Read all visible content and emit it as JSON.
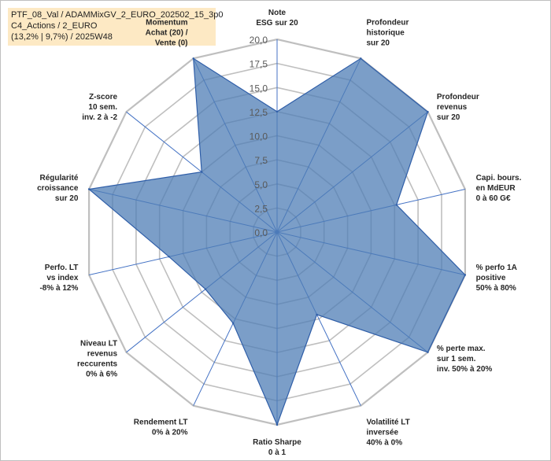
{
  "header": {
    "line1": "PTF_08_Val / ADAMMixGV_2_EURO_202502_15_3p0",
    "line2": "C4_Actions / 2_EURO",
    "line3": "(13,2% | 9,7%) / 2025W48"
  },
  "colors": {
    "fill": "#4f7db5",
    "stroke": "#2f5ea8",
    "grid": "#bfbfbf",
    "spoke": "#4472c4",
    "info_bg": "#fde9c4"
  },
  "chart_data": {
    "type": "radar",
    "rmin": 0,
    "rmax": 20,
    "ticks": [
      "0,0",
      "2,5",
      "5,0",
      "7,5",
      "10,0",
      "12,5",
      "15,0",
      "17,5",
      "20,0"
    ],
    "axes": [
      {
        "lines": [
          "Note",
          "ESG sur 20"
        ],
        "value": 12.5
      },
      {
        "lines": [
          "Profondeur",
          "historique",
          "sur 20"
        ],
        "value": 20
      },
      {
        "lines": [
          "Profondeur",
          "revenus",
          "sur 20"
        ],
        "value": 20
      },
      {
        "lines": [
          "Capi. bours.",
          "en MdEUR",
          "0 à 60 G€"
        ],
        "value": 12.7
      },
      {
        "lines": [
          "% perfo 1A",
          "positive",
          "50% à 80%"
        ],
        "value": 20
      },
      {
        "lines": [
          "% perte max.",
          "sur 1 sem.",
          "inv. 50% à 20%"
        ],
        "value": 20
      },
      {
        "lines": [
          "Volatilité LT",
          "inversée",
          "40% à 0%"
        ],
        "value": 9.5
      },
      {
        "lines": [
          "Ratio Sharpe",
          "0 à 1"
        ],
        "value": 20
      },
      {
        "lines": [
          "Rendement LT",
          "0% à 20%"
        ],
        "value": 10.5
      },
      {
        "lines": [
          "Niveau LT",
          "revenus",
          "reccurents",
          "0% à 6%"
        ],
        "value": 9.5
      },
      {
        "lines": [
          "Perfo. LT",
          "vs index",
          "-8% à 12%"
        ],
        "value": 11.5
      },
      {
        "lines": [
          "Régularité",
          "croissance",
          "sur 20"
        ],
        "value": 20
      },
      {
        "lines": [
          "Z-score",
          "10 sem.",
          "inv. 2 à -2"
        ],
        "value": 10
      },
      {
        "lines": [
          "Momentum",
          "Achat (20) /",
          "Vente (0)"
        ],
        "value": 20
      }
    ]
  }
}
